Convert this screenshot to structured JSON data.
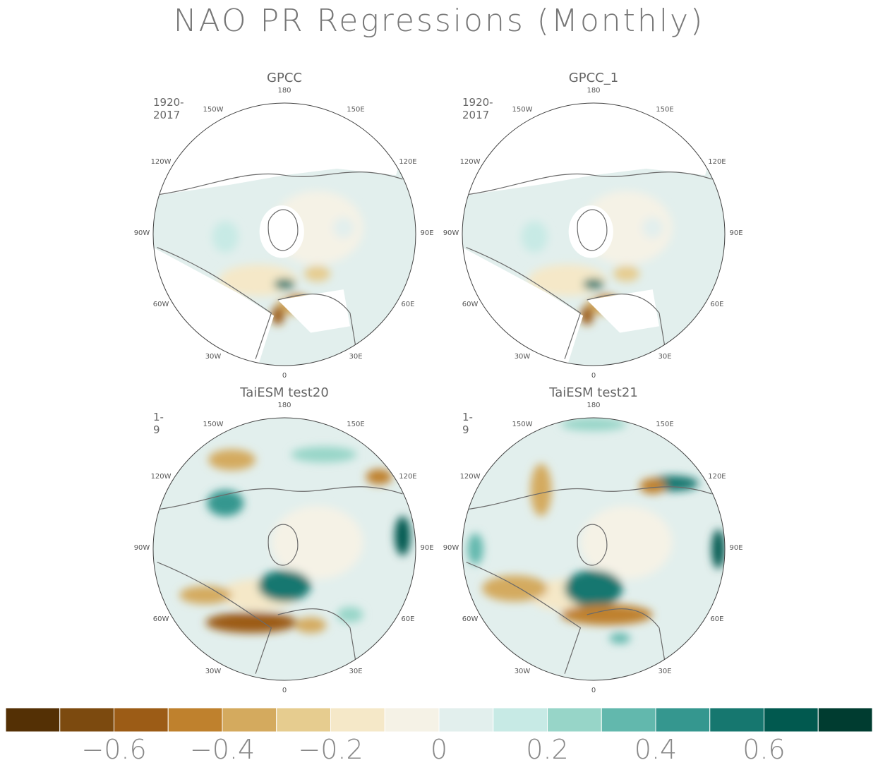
{
  "title": "NAO PR Regressions (Monthly)",
  "panels": [
    {
      "title": "GPCC",
      "period": "1920-2017",
      "kind": "obs"
    },
    {
      "title": "GPCC_1",
      "period": "1920-2017",
      "kind": "obs"
    },
    {
      "title": "TaiESM test20",
      "period": "1-9",
      "kind": "model"
    },
    {
      "title": "TaiESM test21",
      "period": "1-9",
      "kind": "model"
    }
  ],
  "longitude_labels": {
    "top": "180",
    "upper_left": "150W",
    "upper_right": "150E",
    "mid_upper_left": "120W",
    "mid_upper_right": "120E",
    "left": "90W",
    "right": "90E",
    "mid_lower_left": "60W",
    "mid_lower_right": "60E",
    "lower_left": "30W",
    "lower_right": "30E",
    "bottom": "0"
  },
  "colorbar": {
    "labels": [
      "-0.6",
      "-0.4",
      "-0.2",
      "0",
      "0.2",
      "0.4",
      "0.6"
    ],
    "colors": [
      "#543005",
      "#7c4a0f",
      "#9c5c16",
      "#bf812d",
      "#d4aa5e",
      "#e6cc8f",
      "#f5e8c8",
      "#f5f2e6",
      "#e2efed",
      "#c7eae5",
      "#97d5c8",
      "#62b8ad",
      "#35978f",
      "#16776f",
      "#01594f",
      "#003c30"
    ]
  },
  "colors": {
    "land_outline": "#6b6b6b",
    "missing": "#ffffff"
  }
}
